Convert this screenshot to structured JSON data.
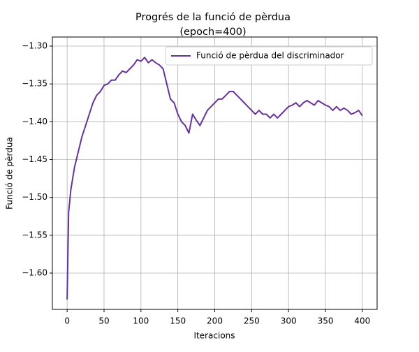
{
  "chart_data": {
    "type": "line",
    "title": "Progrés de la funció de pèrdua",
    "subtitle": "(epoch=400)",
    "x_label": "Iteracions",
    "y_label": "Funció de pèrdua",
    "x": [
      0,
      2,
      5,
      10,
      15,
      20,
      25,
      30,
      35,
      40,
      45,
      50,
      55,
      60,
      65,
      70,
      75,
      80,
      85,
      90,
      95,
      100,
      105,
      110,
      115,
      120,
      125,
      130,
      135,
      140,
      145,
      150,
      155,
      160,
      165,
      170,
      175,
      180,
      185,
      190,
      195,
      200,
      205,
      210,
      215,
      220,
      225,
      230,
      235,
      240,
      245,
      250,
      255,
      260,
      265,
      270,
      275,
      280,
      285,
      290,
      295,
      300,
      305,
      310,
      315,
      320,
      325,
      330,
      335,
      340,
      345,
      350,
      355,
      360,
      365,
      370,
      375,
      380,
      385,
      390,
      395,
      400
    ],
    "series": [
      {
        "name": "Funció de pèrdua del discriminador",
        "color": "#663399",
        "values": [
          -1.635,
          -1.52,
          -1.49,
          -1.46,
          -1.44,
          -1.42,
          -1.405,
          -1.39,
          -1.375,
          -1.365,
          -1.36,
          -1.352,
          -1.35,
          -1.345,
          -1.345,
          -1.338,
          -1.333,
          -1.335,
          -1.33,
          -1.325,
          -1.318,
          -1.32,
          -1.315,
          -1.322,
          -1.318,
          -1.322,
          -1.325,
          -1.33,
          -1.35,
          -1.37,
          -1.375,
          -1.39,
          -1.4,
          -1.405,
          -1.415,
          -1.39,
          -1.398,
          -1.405,
          -1.395,
          -1.385,
          -1.38,
          -1.375,
          -1.37,
          -1.37,
          -1.365,
          -1.36,
          -1.36,
          -1.365,
          -1.37,
          -1.375,
          -1.38,
          -1.385,
          -1.39,
          -1.385,
          -1.39,
          -1.39,
          -1.395,
          -1.39,
          -1.395,
          -1.39,
          -1.385,
          -1.38,
          -1.378,
          -1.375,
          -1.38,
          -1.375,
          -1.372,
          -1.375,
          -1.378,
          -1.372,
          -1.375,
          -1.378,
          -1.38,
          -1.385,
          -1.38,
          -1.385,
          -1.382,
          -1.385,
          -1.39,
          -1.388,
          -1.385,
          -1.392
        ]
      }
    ],
    "xlim": [
      -20,
      420
    ],
    "ylim": [
      -1.648,
      -1.288
    ],
    "xticks": [
      0,
      50,
      100,
      150,
      200,
      250,
      300,
      350,
      400
    ],
    "yticks": [
      {
        "value": -1.3,
        "label": "−1.30"
      },
      {
        "value": -1.35,
        "label": "−1.35"
      },
      {
        "value": -1.4,
        "label": "−1.40"
      },
      {
        "value": -1.45,
        "label": "−1.45"
      },
      {
        "value": -1.5,
        "label": "−1.50"
      },
      {
        "value": -1.55,
        "label": "−1.55"
      },
      {
        "value": -1.6,
        "label": "−1.60"
      }
    ],
    "grid": true,
    "legend": "upper-right"
  }
}
